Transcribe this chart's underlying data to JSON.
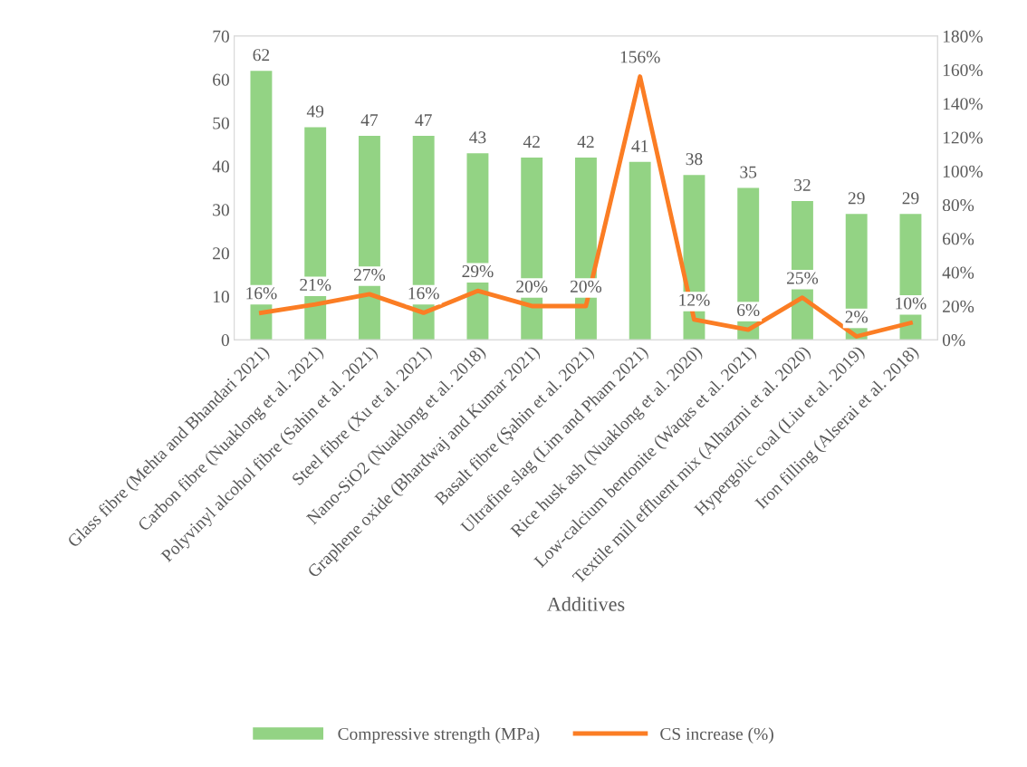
{
  "chart_data": {
    "type": "bar",
    "xlabel": "Additives",
    "categories": [
      "Glass fibre (Mehta and Bhandari 2021)",
      "Carbon fibre (Nuaklong et al. 2021)",
      "Polyvinyl alcohol fibre (Sahin et al. 2021)",
      "Steel fibre (Xu et al. 2021)",
      "Nano-SiO2 (Nuaklong et al. 2018)",
      "Graphene oxide (Bhardwaj and Kumar 2021)",
      "Basalt fibre (Şahin et al. 2021)",
      "Ultrafine slag (Lim and Pham 2021)",
      "Rice husk ash (Nuaklong et al. 2020)",
      "Low-calcium bentonite (Waqas et al. 2021)",
      "Textile mill effluent mix (Alhazmi et al. 2020)",
      "Hypergolic coal (Liu et al. 2019)",
      "Iron filling (Alserai et al. 2018)"
    ],
    "series": [
      {
        "name": "Compressive strength (MPa)",
        "color": "#93d384",
        "values": [
          62,
          49,
          47,
          47,
          43,
          42,
          42,
          41,
          38,
          35,
          32,
          29,
          29
        ],
        "value_labels": [
          "62",
          "49",
          "47",
          "47",
          "43",
          "42",
          "42",
          "41",
          "38",
          "35",
          "32",
          "29",
          "29"
        ]
      },
      {
        "name": "CS increase (%)",
        "type": "line",
        "axis": "y2",
        "color": "#fb7d24",
        "values": [
          16,
          21,
          27,
          16,
          29,
          20,
          20,
          156,
          12,
          6,
          25,
          2,
          10
        ],
        "value_labels": [
          "16%",
          "21%",
          "27%",
          "16%",
          "29%",
          "20%",
          "20%",
          "156%",
          "12%",
          "6%",
          "25%",
          "2%",
          "10%"
        ]
      }
    ],
    "ylim": [
      0,
      70
    ],
    "yticks": [
      0,
      10,
      20,
      30,
      40,
      50,
      60,
      70
    ],
    "y2lim": [
      0,
      180
    ],
    "y2ticks": [
      {
        "value": 0,
        "label": "0%"
      },
      {
        "value": 20,
        "label": "20%"
      },
      {
        "value": 40,
        "label": "40%"
      },
      {
        "value": 60,
        "label": "60%"
      },
      {
        "value": 80,
        "label": "80%"
      },
      {
        "value": 100,
        "label": "100%"
      },
      {
        "value": 120,
        "label": "120%"
      },
      {
        "value": 140,
        "label": "140%"
      },
      {
        "value": 160,
        "label": "160%"
      },
      {
        "value": 180,
        "label": "180%"
      }
    ],
    "grid": false,
    "legend": "bottom",
    "marker": "none",
    "line_style": "solid"
  }
}
